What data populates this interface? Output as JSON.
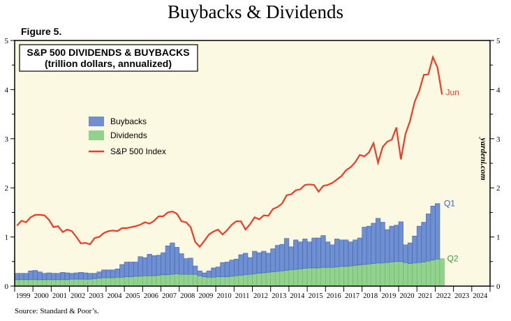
{
  "page_title": "Buybacks & Dividends",
  "figure_label": "Figure 5.",
  "source": "Source: Standard & Poor’s.",
  "watermark": "yardeni.com",
  "chart_data": {
    "type": "bar",
    "stacked": true,
    "title": "S&P 500 DIVIDENDS & BUYBACKS",
    "subtitle": "(trillion dollars, annualized)",
    "ylim": [
      0,
      5
    ],
    "y2lim": [
      0,
      5
    ],
    "yticks": [
      "0",
      "1",
      "2",
      "3",
      "4",
      "5"
    ],
    "xticks": [
      "1999",
      "2000",
      "2001",
      "2002",
      "2003",
      "2004",
      "2005",
      "2006",
      "2007",
      "2008",
      "2009",
      "2010",
      "2011",
      "2012",
      "2013",
      "2014",
      "2015",
      "2016",
      "2017",
      "2018",
      "2019",
      "2020",
      "2021",
      "2022",
      "2023",
      "2024"
    ],
    "xlim": [
      1999,
      2025
    ],
    "legend_placement": "upper-left",
    "grid": false,
    "background": "#fcf9e2",
    "series": [
      {
        "name": "Buybacks",
        "color": "#6f8fd0",
        "edge": "#3b63b8",
        "start": "1999Q1",
        "end_label": "Q1",
        "values": [
          0.13,
          0.13,
          0.13,
          0.18,
          0.19,
          0.16,
          0.13,
          0.14,
          0.13,
          0.13,
          0.15,
          0.14,
          0.12,
          0.13,
          0.14,
          0.13,
          0.12,
          0.11,
          0.13,
          0.16,
          0.16,
          0.16,
          0.17,
          0.26,
          0.3,
          0.3,
          0.29,
          0.4,
          0.37,
          0.44,
          0.41,
          0.41,
          0.45,
          0.59,
          0.64,
          0.54,
          0.42,
          0.32,
          0.33,
          0.17,
          0.1,
          0.08,
          0.13,
          0.19,
          0.2,
          0.29,
          0.3,
          0.33,
          0.34,
          0.42,
          0.44,
          0.34,
          0.46,
          0.42,
          0.44,
          0.39,
          0.47,
          0.53,
          0.54,
          0.65,
          0.47,
          0.6,
          0.55,
          0.6,
          0.53,
          0.61,
          0.61,
          0.65,
          0.52,
          0.46,
          0.57,
          0.54,
          0.54,
          0.49,
          0.52,
          0.55,
          0.76,
          0.77,
          0.82,
          0.91,
          0.83,
          0.67,
          0.73,
          0.74,
          0.81,
          0.36,
          0.42,
          0.55,
          0.74,
          0.81,
          0.96,
          1.1,
          1.13
        ]
      },
      {
        "name": "Dividends",
        "color": "#93d18e",
        "edge": "#5fb55a",
        "start": "1999Q1",
        "end_label": "Q2",
        "values": [
          0.13,
          0.13,
          0.13,
          0.13,
          0.13,
          0.13,
          0.13,
          0.13,
          0.13,
          0.13,
          0.13,
          0.13,
          0.14,
          0.14,
          0.14,
          0.14,
          0.14,
          0.15,
          0.16,
          0.17,
          0.17,
          0.17,
          0.18,
          0.18,
          0.19,
          0.19,
          0.2,
          0.2,
          0.21,
          0.21,
          0.21,
          0.22,
          0.23,
          0.23,
          0.24,
          0.25,
          0.24,
          0.24,
          0.24,
          0.24,
          0.21,
          0.19,
          0.18,
          0.18,
          0.19,
          0.19,
          0.19,
          0.2,
          0.21,
          0.22,
          0.23,
          0.24,
          0.25,
          0.26,
          0.27,
          0.28,
          0.29,
          0.3,
          0.31,
          0.32,
          0.33,
          0.34,
          0.35,
          0.36,
          0.37,
          0.37,
          0.37,
          0.38,
          0.38,
          0.38,
          0.39,
          0.4,
          0.4,
          0.41,
          0.42,
          0.43,
          0.44,
          0.45,
          0.46,
          0.47,
          0.47,
          0.48,
          0.49,
          0.5,
          0.5,
          0.48,
          0.46,
          0.47,
          0.48,
          0.49,
          0.51,
          0.53,
          0.55,
          0.56
        ]
      },
      {
        "name": "S&P 500 Index",
        "type": "line",
        "axis": "right",
        "color": "#f23a22",
        "start": "1999Q1",
        "end_label": "Jun",
        "values": [
          1.23,
          1.33,
          1.3,
          1.4,
          1.45,
          1.45,
          1.44,
          1.35,
          1.2,
          1.22,
          1.1,
          1.15,
          1.12,
          1.0,
          0.87,
          0.88,
          0.85,
          0.98,
          1.0,
          1.08,
          1.12,
          1.13,
          1.12,
          1.18,
          1.18,
          1.2,
          1.22,
          1.25,
          1.3,
          1.27,
          1.33,
          1.42,
          1.42,
          1.5,
          1.52,
          1.47,
          1.32,
          1.3,
          1.2,
          0.9,
          0.8,
          0.92,
          1.05,
          1.11,
          1.15,
          1.05,
          1.14,
          1.25,
          1.32,
          1.32,
          1.15,
          1.26,
          1.4,
          1.36,
          1.44,
          1.43,
          1.57,
          1.61,
          1.68,
          1.85,
          1.87,
          1.95,
          1.97,
          2.06,
          2.07,
          2.06,
          1.92,
          2.04,
          2.06,
          2.1,
          2.17,
          2.24,
          2.36,
          2.42,
          2.52,
          2.67,
          2.64,
          2.72,
          2.91,
          2.51,
          2.83,
          2.94,
          2.98,
          3.23,
          2.58,
          3.1,
          3.36,
          3.75,
          3.97,
          4.3,
          4.31,
          4.66,
          4.45,
          3.9
        ]
      }
    ]
  }
}
